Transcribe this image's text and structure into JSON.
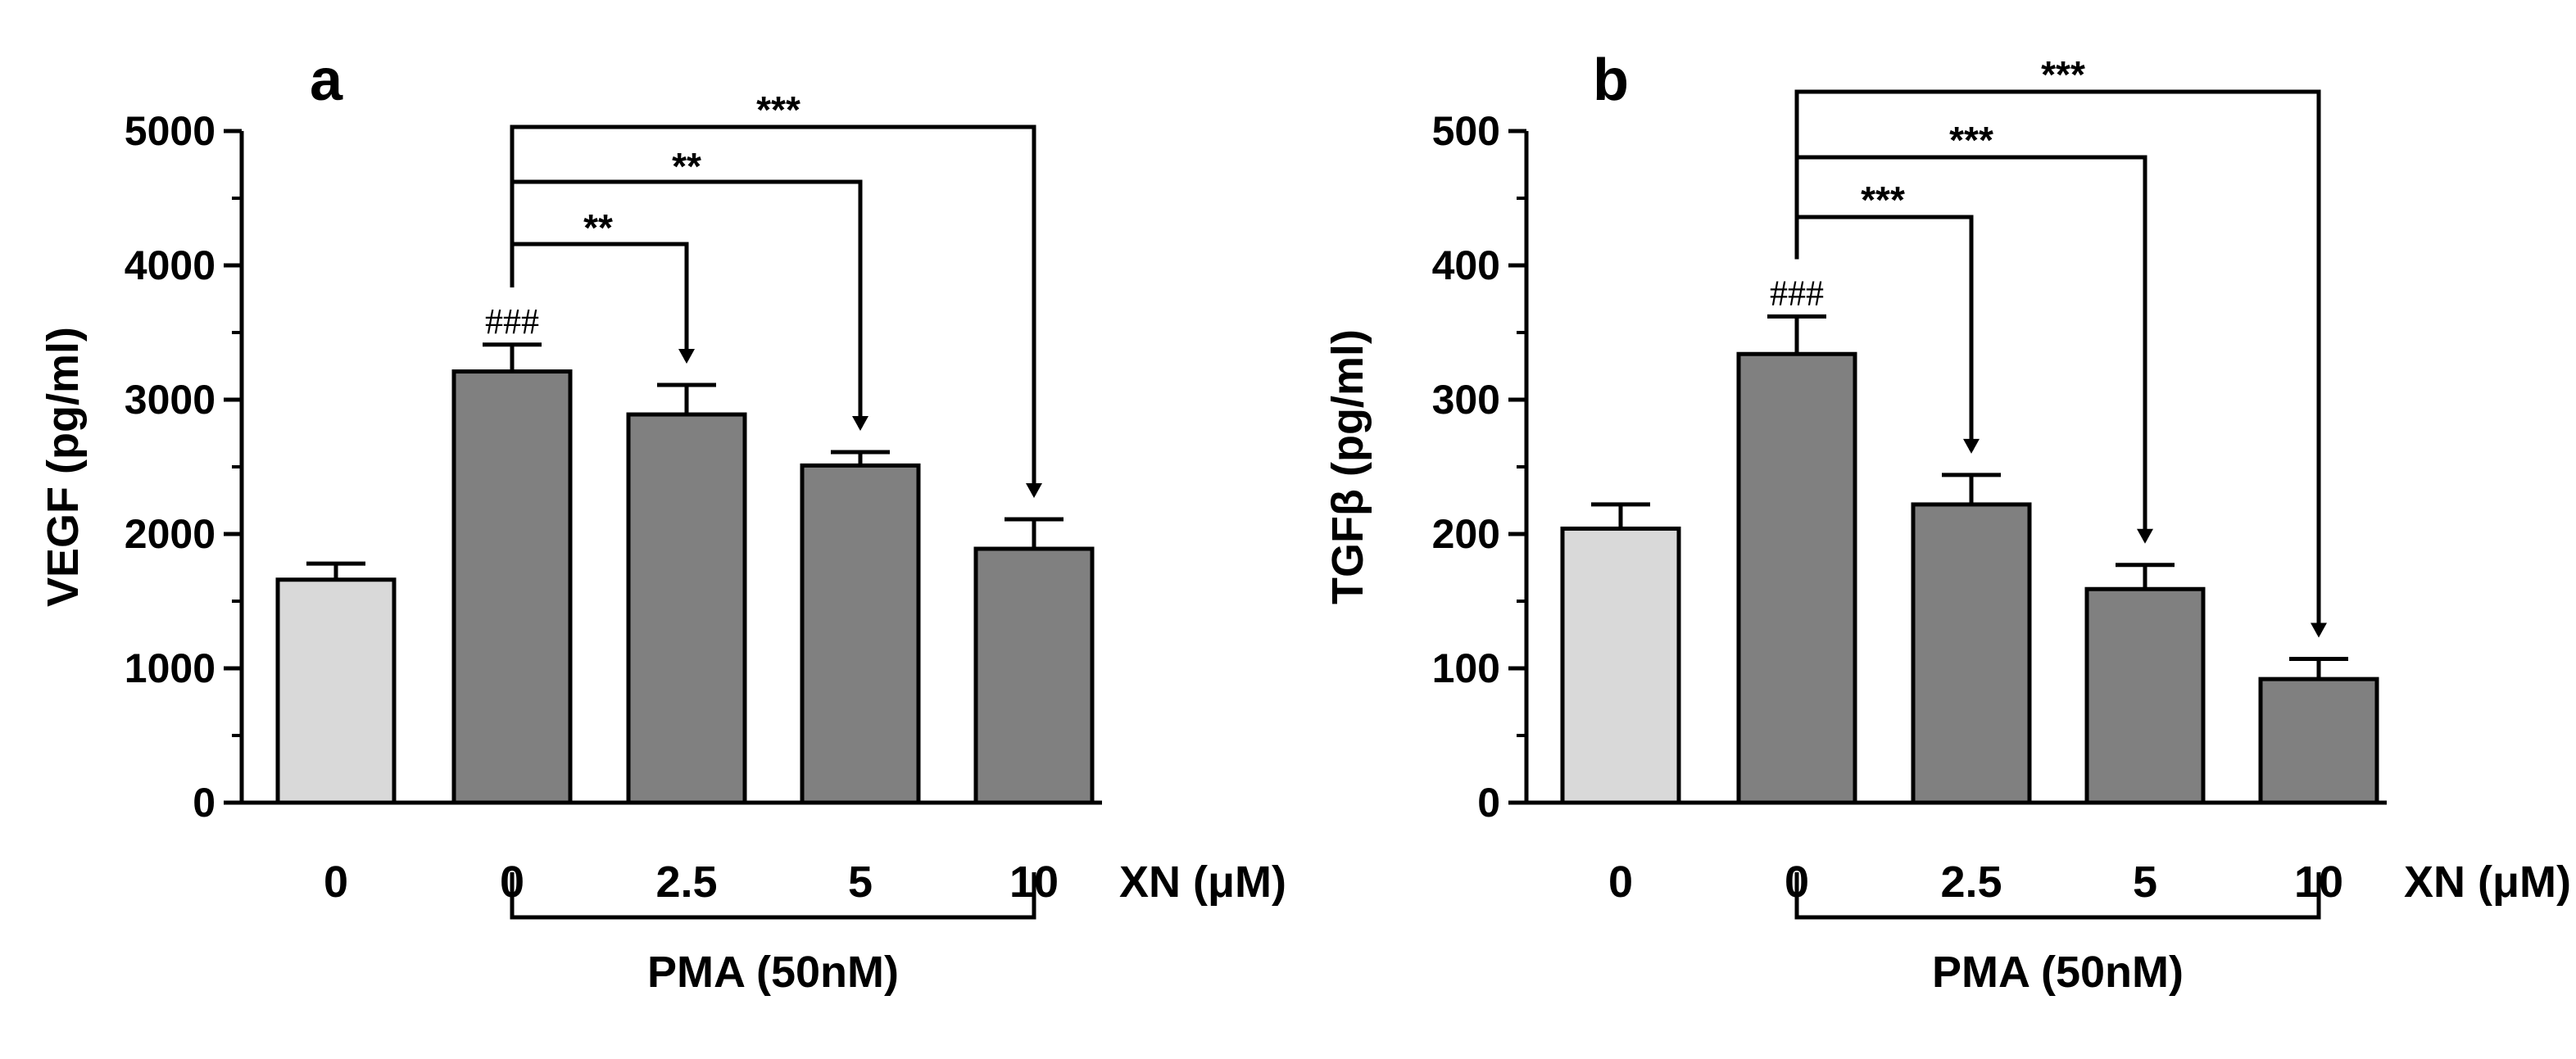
{
  "chart_data": [
    {
      "type": "bar",
      "panel": "a",
      "ylabel": "VEGF (pg/ml)",
      "ylim": [
        0,
        5000
      ],
      "yticks": [
        "0",
        "1000",
        "2000",
        "3000",
        "4000",
        "5000"
      ],
      "categories": [
        "0",
        "0",
        "2.5",
        "5",
        "10"
      ],
      "x_unit": "XN (μM)",
      "treatment": "PMA (50nM)",
      "values": [
        1660,
        3210,
        2890,
        2510,
        1890
      ],
      "errors": [
        120,
        200,
        220,
        100,
        220
      ],
      "colors": [
        "#d9d9d9",
        "#808080",
        "#808080",
        "#808080",
        "#808080"
      ],
      "control_marker": "###",
      "comparisons": [
        {
          "from": 1,
          "to": 2,
          "label": "**"
        },
        {
          "from": 1,
          "to": 3,
          "label": "**"
        },
        {
          "from": 1,
          "to": 4,
          "label": "***"
        }
      ]
    },
    {
      "type": "bar",
      "panel": "b",
      "ylabel": "TGFβ (pg/ml)",
      "ylim": [
        0,
        500
      ],
      "yticks": [
        "0",
        "100",
        "200",
        "300",
        "400",
        "500"
      ],
      "categories": [
        "0",
        "0",
        "2.5",
        "5",
        "10"
      ],
      "x_unit": "XN (μM)",
      "treatment": "PMA (50nM)",
      "values": [
        204,
        334,
        222,
        159,
        92
      ],
      "errors": [
        18,
        28,
        22,
        18,
        15
      ],
      "colors": [
        "#d9d9d9",
        "#808080",
        "#808080",
        "#808080",
        "#808080"
      ],
      "control_marker": "###",
      "comparisons": [
        {
          "from": 1,
          "to": 2,
          "label": "***"
        },
        {
          "from": 1,
          "to": 3,
          "label": "***"
        },
        {
          "from": 1,
          "to": 4,
          "label": "***"
        }
      ]
    }
  ]
}
